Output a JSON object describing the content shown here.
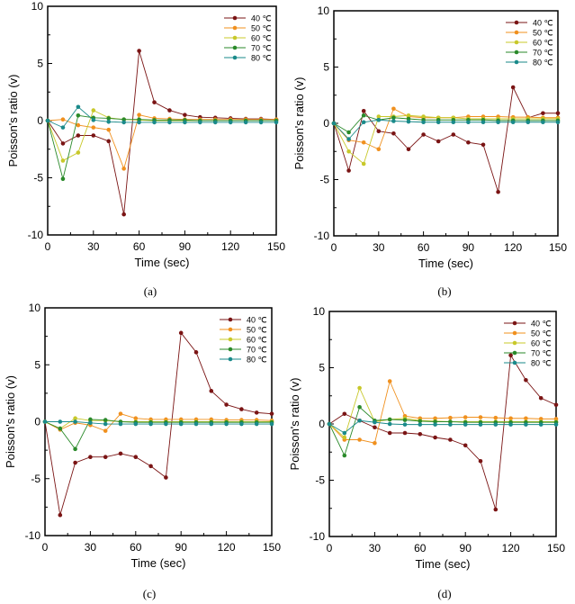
{
  "chart_data": [
    {
      "type": "line",
      "caption": "(a)",
      "xlabel": "Time (sec)",
      "ylabel": "Poisson's ratio (v)",
      "xlim": [
        0,
        150
      ],
      "ylim": [
        -10,
        10
      ],
      "xticks": [
        0,
        30,
        60,
        90,
        120,
        150
      ],
      "yticks": [
        -10,
        -5,
        0,
        5,
        10
      ],
      "grid": false,
      "legend": "top-right",
      "x": [
        0,
        10,
        20,
        30,
        40,
        50,
        60,
        70,
        80,
        90,
        100,
        110,
        120,
        130,
        140,
        150
      ],
      "series": [
        {
          "name": "40 ℃",
          "color": "#7a1414",
          "values": [
            0,
            -2,
            -1.3,
            -1.3,
            -1.8,
            -8.2,
            6.1,
            1.6,
            0.9,
            0.5,
            0.3,
            0.25,
            0.2,
            0.15,
            0.15,
            0.1
          ]
        },
        {
          "name": "50 ℃",
          "color": "#f0901e",
          "values": [
            0,
            0.1,
            -0.4,
            -0.6,
            -0.8,
            -4.2,
            0.5,
            0.2,
            0.15,
            0.1,
            0.1,
            0.1,
            0.1,
            0.1,
            0.1,
            0.1
          ]
        },
        {
          "name": "60 ℃",
          "color": "#c8c82a",
          "values": [
            0,
            -3.5,
            -2.8,
            0.9,
            0.25,
            0.1,
            0.05,
            0,
            0,
            0,
            0,
            0,
            0,
            0,
            0,
            0
          ]
        },
        {
          "name": "70 ℃",
          "color": "#2a8a2a",
          "values": [
            0,
            -5.1,
            0.45,
            0.25,
            0.2,
            0.1,
            0.1,
            0.05,
            0.05,
            0.05,
            0,
            0,
            0,
            0,
            0,
            0
          ]
        },
        {
          "name": "80 ℃",
          "color": "#1a8a8a",
          "values": [
            0,
            -0.6,
            1.2,
            0.05,
            -0.1,
            -0.15,
            -0.15,
            -0.15,
            -0.15,
            -0.15,
            -0.15,
            -0.15,
            -0.15,
            -0.15,
            -0.15,
            -0.15
          ]
        }
      ]
    },
    {
      "type": "line",
      "caption": "(b)",
      "xlabel": "Time (sec)",
      "ylabel": "Poisson's ratio (v)",
      "xlim": [
        0,
        150
      ],
      "ylim": [
        -10,
        10
      ],
      "xticks": [
        0,
        30,
        60,
        90,
        120,
        150
      ],
      "yticks": [
        -10,
        -5,
        0,
        5,
        10
      ],
      "grid": false,
      "legend": "top-right",
      "x": [
        0,
        10,
        20,
        30,
        40,
        50,
        60,
        70,
        80,
        90,
        100,
        110,
        120,
        130,
        140,
        150
      ],
      "series": [
        {
          "name": "40 ℃",
          "color": "#7a1414",
          "values": [
            0,
            -4.2,
            1.1,
            -0.7,
            -0.9,
            -2.3,
            -1,
            -1.6,
            -1,
            -1.7,
            -1.9,
            -6.1,
            3.2,
            0.5,
            0.9,
            0.9
          ]
        },
        {
          "name": "50 ℃",
          "color": "#f0901e",
          "values": [
            0,
            -1.5,
            -1.7,
            -2.3,
            1.3,
            0.6,
            0.5,
            0.5,
            0.5,
            0.6,
            0.6,
            0.6,
            0.55,
            0.55,
            0.5,
            0.5
          ]
        },
        {
          "name": "60 ℃",
          "color": "#c8c82a",
          "values": [
            0,
            -2.5,
            -3.6,
            0.6,
            0.6,
            0.7,
            0.6,
            0.5,
            0.5,
            0.4,
            0.4,
            0.4,
            0.4,
            0.4,
            0.4,
            0.4
          ]
        },
        {
          "name": "70 ℃",
          "color": "#2a8a2a",
          "values": [
            0,
            -0.8,
            0.7,
            0.3,
            0.5,
            0.4,
            0.3,
            0.3,
            0.3,
            0.3,
            0.3,
            0.25,
            0.25,
            0.25,
            0.25,
            0.25
          ]
        },
        {
          "name": "80 ℃",
          "color": "#1a8a8a",
          "values": [
            0,
            -1.4,
            0.1,
            0.3,
            0.2,
            0.15,
            0.1,
            0.1,
            0.1,
            0.1,
            0.1,
            0.1,
            0.1,
            0.1,
            0.1,
            0.1
          ]
        }
      ]
    },
    {
      "type": "line",
      "caption": "(c)",
      "xlabel": "Time (sec)",
      "ylabel": "Poisson's ratio (v)",
      "xlim": [
        0,
        150
      ],
      "ylim": [
        -10,
        10
      ],
      "xticks": [
        0,
        30,
        60,
        90,
        120,
        150
      ],
      "yticks": [
        -10,
        -5,
        0,
        5,
        10
      ],
      "grid": false,
      "legend": "top-right",
      "x": [
        0,
        10,
        20,
        30,
        40,
        50,
        60,
        70,
        80,
        90,
        100,
        110,
        120,
        130,
        140,
        150
      ],
      "series": [
        {
          "name": "40 ℃",
          "color": "#7a1414",
          "values": [
            0,
            -8.2,
            -3.6,
            -3.1,
            -3.1,
            -2.8,
            -3.1,
            -3.9,
            -4.9,
            7.8,
            6.1,
            2.7,
            1.5,
            1.1,
            0.8,
            0.7
          ]
        },
        {
          "name": "50 ℃",
          "color": "#f0901e",
          "values": [
            0,
            -0.7,
            -0.1,
            -0.3,
            -0.8,
            0.7,
            0.3,
            0.2,
            0.2,
            0.2,
            0.2,
            0.2,
            0.15,
            0.15,
            0.15,
            0.1
          ]
        },
        {
          "name": "60 ℃",
          "color": "#c8c82a",
          "values": [
            0,
            -0.6,
            0.3,
            0.1,
            0.1,
            0,
            0,
            0,
            0,
            0,
            0,
            0,
            0,
            0,
            0,
            0
          ]
        },
        {
          "name": "70 ℃",
          "color": "#2a8a2a",
          "values": [
            0,
            -0.6,
            -2.4,
            0.2,
            0.15,
            0,
            -0.05,
            -0.05,
            -0.05,
            -0.05,
            -0.05,
            -0.05,
            -0.05,
            -0.05,
            -0.05,
            -0.05
          ]
        },
        {
          "name": "80 ℃",
          "color": "#1a8a8a",
          "values": [
            0,
            0,
            0,
            -0.1,
            -0.2,
            -0.2,
            -0.2,
            -0.2,
            -0.2,
            -0.2,
            -0.2,
            -0.2,
            -0.2,
            -0.2,
            -0.2,
            -0.2
          ]
        }
      ]
    },
    {
      "type": "line",
      "caption": "(d)",
      "xlabel": "Time (sec)",
      "ylabel": "Poisson's ratio (v)",
      "xlim": [
        0,
        150
      ],
      "ylim": [
        -10,
        10
      ],
      "xticks": [
        0,
        30,
        60,
        90,
        120,
        150
      ],
      "yticks": [
        -10,
        -5,
        0,
        5,
        10
      ],
      "grid": false,
      "legend": "top-right",
      "x": [
        0,
        10,
        20,
        30,
        40,
        50,
        60,
        70,
        80,
        90,
        100,
        110,
        120,
        130,
        140,
        150
      ],
      "series": [
        {
          "name": "40 ℃",
          "color": "#7a1414",
          "values": [
            0,
            0.9,
            0.3,
            -0.3,
            -0.8,
            -0.8,
            -0.9,
            -1.2,
            -1.4,
            -1.9,
            -3.3,
            -7.6,
            6.1,
            3.9,
            2.3,
            1.7
          ]
        },
        {
          "name": "50 ℃",
          "color": "#f0901e",
          "values": [
            0,
            -1.4,
            -1.4,
            -1.7,
            3.8,
            0.7,
            0.5,
            0.5,
            0.55,
            0.6,
            0.6,
            0.55,
            0.5,
            0.5,
            0.45,
            0.45
          ]
        },
        {
          "name": "60 ℃",
          "color": "#c8c82a",
          "values": [
            0,
            -1.2,
            3.2,
            0.2,
            0.4,
            0.5,
            0.3,
            0.25,
            0.2,
            0.2,
            0.2,
            0.2,
            0.2,
            0.2,
            0.2,
            0.2
          ]
        },
        {
          "name": "70 ℃",
          "color": "#2a8a2a",
          "values": [
            0,
            -2.8,
            1.5,
            0.3,
            0.4,
            0.35,
            0.25,
            0.2,
            0.2,
            0.15,
            0.15,
            0.15,
            0.15,
            0.15,
            0.15,
            0.15
          ]
        },
        {
          "name": "80 ℃",
          "color": "#1a8a8a",
          "values": [
            0,
            -0.8,
            0.3,
            0.15,
            0,
            -0.05,
            -0.05,
            -0.05,
            -0.05,
            -0.05,
            -0.05,
            -0.05,
            -0.05,
            -0.05,
            -0.05,
            -0.05
          ]
        }
      ]
    }
  ]
}
